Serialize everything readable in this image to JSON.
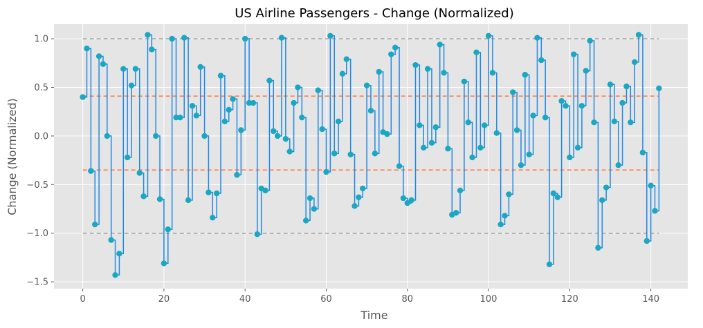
{
  "chart_data": {
    "type": "line",
    "title": "US Airline Passengers - Change (Normalized)",
    "xlabel": "Time",
    "ylabel": "Change (Normalized)",
    "xlim": [
      -7.1,
      149.1
    ],
    "ylim": [
      -1.57,
      1.15
    ],
    "xticks": [
      0,
      20,
      40,
      60,
      80,
      100,
      120,
      140
    ],
    "xtick_labels": [
      "0",
      "20",
      "40",
      "60",
      "80",
      "100",
      "120",
      "140"
    ],
    "yticks": [
      -1.5,
      -1.0,
      -0.5,
      0.0,
      0.5,
      1.0
    ],
    "ytick_labels": [
      "−1.5",
      "−1.0",
      "−0.5",
      "0.0",
      "0.5",
      "1.0"
    ],
    "grid": true,
    "legend": "none",
    "colors": {
      "background": "#e5e5e5",
      "grid": "#ffffff",
      "step_line": "#1e88e5",
      "markers": "#1aa7c0",
      "mean_band": "#ff7f50",
      "limit_lines": "#a0a0a0"
    },
    "reference_lines": [
      {
        "y": 1.0,
        "style": "dashed",
        "color": "#a0a0a0"
      },
      {
        "y": -1.0,
        "style": "dashed",
        "color": "#a0a0a0"
      },
      {
        "y": 0.41,
        "style": "dashed",
        "color": "#ff7f50"
      },
      {
        "y": -0.35,
        "style": "dashed",
        "color": "#ff7f50"
      }
    ],
    "series": [
      {
        "style": "step-post",
        "x": [
          0,
          1,
          2,
          3,
          4,
          5,
          6,
          7,
          8,
          9,
          10,
          11,
          12,
          13,
          14,
          15,
          16,
          17,
          18,
          19,
          20,
          21,
          22,
          23,
          24,
          25,
          26,
          27,
          28,
          29,
          30,
          31,
          32,
          33,
          34,
          35,
          36,
          37,
          38,
          39,
          40,
          41,
          42,
          43,
          44,
          45,
          46,
          47,
          48,
          49,
          50,
          51,
          52,
          53,
          54,
          55,
          56,
          57,
          58,
          59,
          60,
          61,
          62,
          63,
          64,
          65,
          66,
          67,
          68,
          69,
          70,
          71,
          72,
          73,
          74,
          75,
          76,
          77,
          78,
          79,
          80,
          81,
          82,
          83,
          84,
          85,
          86,
          87,
          88,
          89,
          90,
          91,
          92,
          93,
          94,
          95,
          96,
          97,
          98,
          99,
          100,
          101,
          102,
          103,
          104,
          105,
          106,
          107,
          108,
          109,
          110,
          111,
          112,
          113,
          114,
          115,
          116,
          117,
          118,
          119,
          120,
          121,
          122,
          123,
          124,
          125,
          126,
          127,
          128,
          129,
          130,
          131,
          132,
          133,
          134,
          135,
          136,
          137,
          138,
          139,
          140,
          141,
          142
        ],
        "values": [
          0.4,
          0.9,
          -0.36,
          -0.91,
          0.82,
          0.74,
          0.0,
          -1.07,
          -1.43,
          -1.21,
          0.69,
          -0.22,
          0.52,
          0.69,
          -0.38,
          -0.62,
          1.04,
          0.89,
          0.0,
          -0.65,
          -1.31,
          -0.96,
          1.0,
          0.19,
          0.19,
          1.01,
          -0.66,
          0.31,
          0.21,
          0.71,
          0.0,
          -0.58,
          -0.84,
          -0.59,
          0.62,
          0.15,
          0.27,
          0.38,
          -0.4,
          0.06,
          1.0,
          0.34,
          0.34,
          -1.01,
          -0.54,
          -0.56,
          0.57,
          0.05,
          0.0,
          1.01,
          -0.03,
          -0.16,
          0.34,
          0.5,
          0.19,
          -0.87,
          -0.64,
          -0.75,
          0.47,
          0.07,
          -0.37,
          1.03,
          -0.18,
          0.15,
          0.64,
          0.79,
          -0.19,
          -0.72,
          -0.63,
          -0.54,
          0.52,
          0.26,
          -0.18,
          0.66,
          0.04,
          0.02,
          0.84,
          0.91,
          -0.31,
          -0.64,
          -0.69,
          -0.66,
          0.73,
          0.11,
          -0.12,
          0.69,
          -0.07,
          0.09,
          0.94,
          0.65,
          -0.13,
          -0.81,
          -0.79,
          -0.56,
          0.56,
          0.14,
          -0.22,
          0.86,
          -0.12,
          0.11,
          1.03,
          0.65,
          0.03,
          -0.91,
          -0.82,
          -0.6,
          0.45,
          0.06,
          -0.3,
          0.63,
          -0.19,
          0.21,
          1.01,
          0.78,
          0.19,
          -1.32,
          -0.59,
          -0.63,
          0.36,
          0.31,
          -0.22,
          0.84,
          -0.12,
          0.31,
          0.67,
          0.98,
          0.14,
          -1.15,
          -0.66,
          -0.53,
          0.53,
          0.15,
          -0.3,
          0.34,
          0.51,
          0.14,
          0.76,
          1.04,
          -0.17,
          -1.08,
          -0.51,
          -0.77,
          0.49
        ]
      }
    ]
  }
}
